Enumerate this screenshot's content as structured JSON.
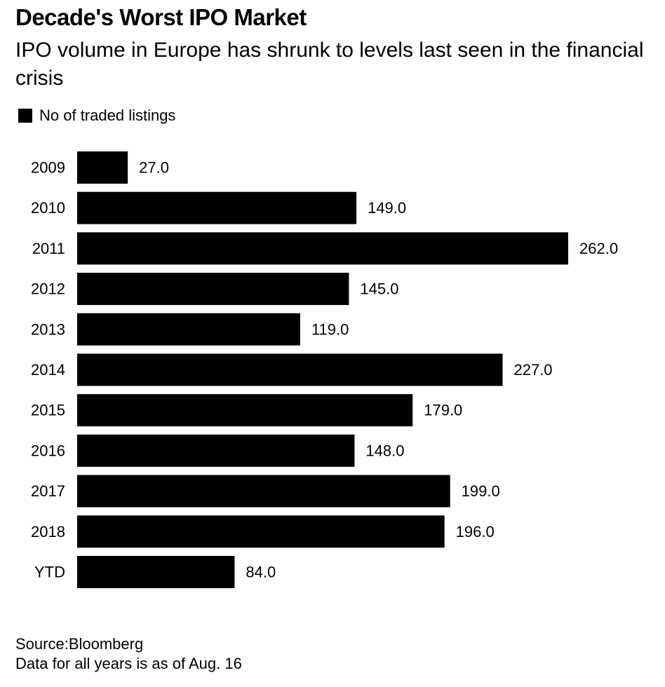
{
  "title": "Decade's Worst IPO Market",
  "subtitle": "IPO volume in Europe has shrunk to levels last seen in the financial crisis",
  "legend": {
    "label": "No of traded listings",
    "color": "#000000"
  },
  "chart_data": {
    "type": "bar",
    "orientation": "horizontal",
    "categories": [
      "2009",
      "2010",
      "2011",
      "2012",
      "2013",
      "2014",
      "2015",
      "2016",
      "2017",
      "2018",
      "YTD"
    ],
    "series": [
      {
        "name": "No of traded listings",
        "values": [
          27.0,
          149.0,
          262.0,
          145.0,
          119.0,
          227.0,
          179.0,
          148.0,
          199.0,
          196.0,
          84.0
        ],
        "color": "#000000"
      }
    ],
    "value_labels": [
      "27.0",
      "149.0",
      "262.0",
      "145.0",
      "119.0",
      "227.0",
      "179.0",
      "148.0",
      "199.0",
      "196.0",
      "84.0"
    ],
    "xlim": [
      0,
      262
    ],
    "grid": false,
    "legend_position": "top-left"
  },
  "source": {
    "line1": "Source:Bloomberg",
    "line2": "Data for all years is as of Aug. 16"
  }
}
